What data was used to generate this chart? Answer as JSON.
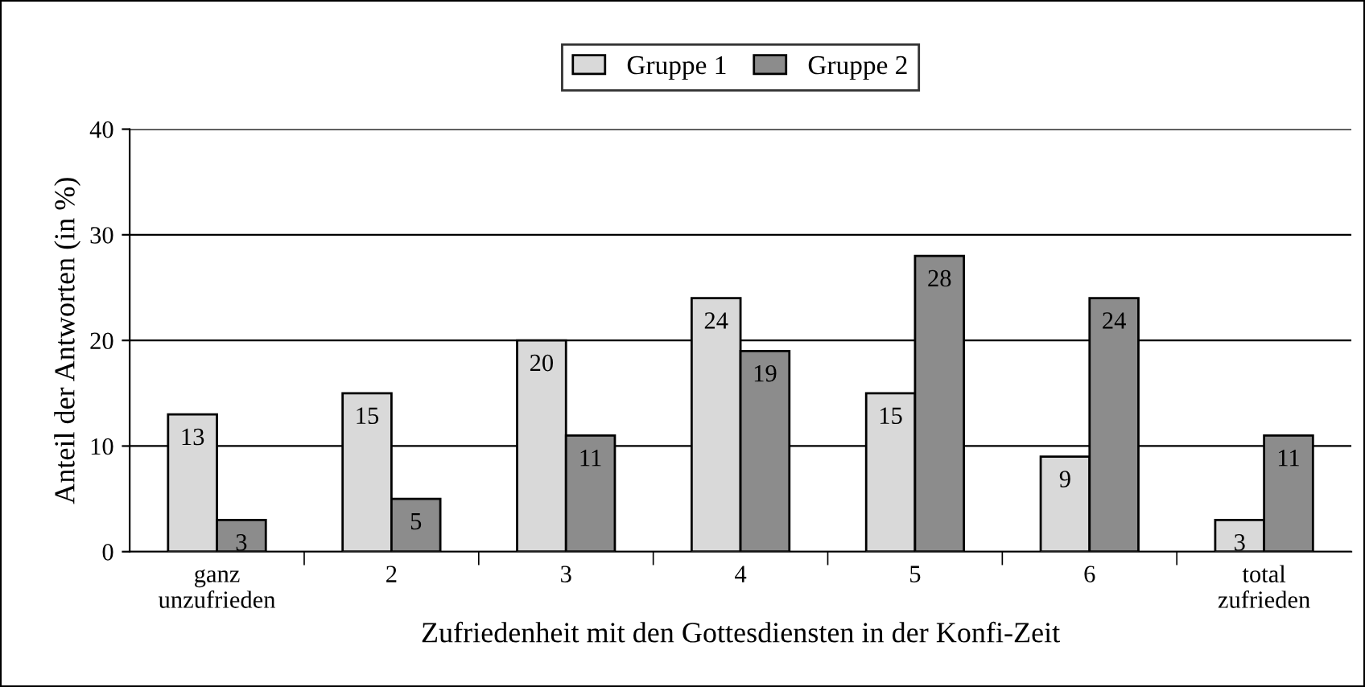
{
  "chart_data": {
    "type": "bar",
    "xlabel": "Zufriedenheit mit den Gottesdiensten in der Konfi-Zeit",
    "ylabel": "Anteil der Antworten (in %)",
    "categories": [
      "ganz\nunzufrieden",
      "2",
      "3",
      "4",
      "5",
      "6",
      "total\nzufrieden"
    ],
    "series": [
      {
        "name": "Gruppe 1",
        "color": "#d9d9d9",
        "values": [
          13,
          15,
          20,
          24,
          15,
          9,
          3
        ]
      },
      {
        "name": "Gruppe 2",
        "color": "#8c8c8c",
        "values": [
          3,
          5,
          11,
          19,
          28,
          24,
          11
        ]
      }
    ],
    "ylim": [
      0,
      40
    ],
    "yticks": [
      0,
      10,
      20,
      30,
      40
    ],
    "grid": "y",
    "legend": "top",
    "data_labels": true
  }
}
